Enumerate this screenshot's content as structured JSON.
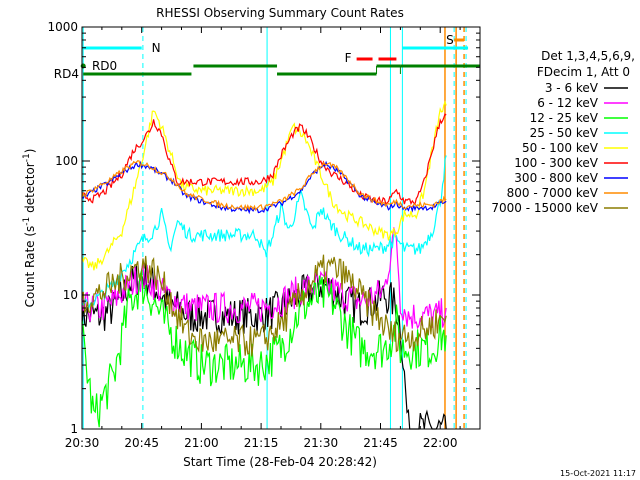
{
  "chart_data": {
    "type": "line",
    "title": "RHESSI Observing Summary Count Rates",
    "xlabel": "Start Time (28-Feb-04 20:28:42)",
    "ylabel_main": "Count Rate (s",
    "ylabel_sup1": "-1",
    "ylabel_mid": " detector",
    "ylabel_sup2": "-1",
    "ylabel_end": ")",
    "y_scale": "log",
    "ylim": [
      1,
      1000
    ],
    "xlim_minutes": [
      0,
      100
    ],
    "x_ticks": [
      {
        "m": 0,
        "label": "20:30"
      },
      {
        "m": 15,
        "label": "20:45"
      },
      {
        "m": 30,
        "label": "21:00"
      },
      {
        "m": 45,
        "label": "21:15"
      },
      {
        "m": 60,
        "label": "21:30"
      },
      {
        "m": 75,
        "label": "21:45"
      },
      {
        "m": 90,
        "label": "22:00"
      }
    ],
    "y_ticks": [
      {
        "v": 1,
        "label": "1"
      },
      {
        "v": 10,
        "label": "10"
      },
      {
        "v": 100,
        "label": "100"
      },
      {
        "v": 1000,
        "label": "1000"
      }
    ],
    "legend_header": [
      "Det 1,3,4,5,6,9,",
      "FDecim 1, Att 0"
    ],
    "series": [
      {
        "name": "3 - 6 keV",
        "color": "#000000",
        "points": [
          [
            0,
            7
          ],
          [
            5,
            7
          ],
          [
            8,
            8
          ],
          [
            12,
            12
          ],
          [
            15,
            14
          ],
          [
            18,
            12
          ],
          [
            21,
            9
          ],
          [
            24,
            8
          ],
          [
            27,
            7
          ],
          [
            30,
            7
          ],
          [
            35,
            7
          ],
          [
            40,
            7
          ],
          [
            45,
            7
          ],
          [
            50,
            8
          ],
          [
            55,
            10
          ],
          [
            60,
            12
          ],
          [
            63,
            11
          ],
          [
            66,
            9
          ],
          [
            70,
            8
          ],
          [
            74,
            9
          ],
          [
            76,
            10
          ],
          [
            78,
            9
          ],
          [
            79,
            8
          ],
          [
            80,
            6
          ],
          [
            82,
            1
          ],
          [
            84,
            1
          ],
          [
            86,
            1
          ],
          [
            88,
            1
          ],
          [
            90,
            1
          ],
          [
            91.5,
            1
          ]
        ]
      },
      {
        "name": "6 - 12 keV",
        "color": "#ff00ff",
        "points": [
          [
            0,
            8
          ],
          [
            5,
            8
          ],
          [
            8,
            9
          ],
          [
            12,
            12
          ],
          [
            15,
            14
          ],
          [
            18,
            12
          ],
          [
            21,
            10
          ],
          [
            24,
            9
          ],
          [
            27,
            8
          ],
          [
            30,
            8
          ],
          [
            35,
            8
          ],
          [
            40,
            8
          ],
          [
            45,
            8
          ],
          [
            50,
            9
          ],
          [
            55,
            11
          ],
          [
            60,
            12
          ],
          [
            63,
            11
          ],
          [
            66,
            10
          ],
          [
            70,
            9
          ],
          [
            74,
            10
          ],
          [
            76,
            11
          ],
          [
            78,
            25
          ],
          [
            79,
            28
          ],
          [
            80,
            9
          ],
          [
            82,
            7
          ],
          [
            86,
            7
          ],
          [
            90,
            7
          ],
          [
            91.5,
            8
          ]
        ]
      },
      {
        "name": "12 - 25 keV",
        "color": "#00ff00",
        "points": [
          [
            0,
            5
          ],
          [
            3,
            1.2
          ],
          [
            8,
            2.5
          ],
          [
            12,
            9
          ],
          [
            15,
            12
          ],
          [
            18,
            9
          ],
          [
            21,
            6
          ],
          [
            25,
            4
          ],
          [
            30,
            3
          ],
          [
            35,
            3
          ],
          [
            40,
            3
          ],
          [
            45,
            3
          ],
          [
            50,
            4
          ],
          [
            55,
            8
          ],
          [
            60,
            10
          ],
          [
            63,
            9
          ],
          [
            66,
            6
          ],
          [
            70,
            4
          ],
          [
            74,
            4
          ],
          [
            76,
            4
          ],
          [
            78,
            5
          ],
          [
            79,
            6
          ],
          [
            80,
            4
          ],
          [
            84,
            4
          ],
          [
            88,
            4
          ],
          [
            90,
            5
          ],
          [
            91.5,
            5
          ]
        ]
      },
      {
        "name": "25 - 50 keV",
        "color": "#00ffff",
        "points": [
          [
            0,
            8
          ],
          [
            5,
            10
          ],
          [
            8,
            12
          ],
          [
            12,
            18
          ],
          [
            15,
            25
          ],
          [
            18,
            30
          ],
          [
            20,
            40
          ],
          [
            22,
            22
          ],
          [
            24,
            35
          ],
          [
            27,
            28
          ],
          [
            30,
            28
          ],
          [
            35,
            28
          ],
          [
            40,
            28
          ],
          [
            44,
            28
          ],
          [
            46,
            20
          ],
          [
            48,
            28
          ],
          [
            50,
            45
          ],
          [
            52,
            30
          ],
          [
            55,
            55
          ],
          [
            58,
            30
          ],
          [
            60,
            45
          ],
          [
            62,
            35
          ],
          [
            65,
            28
          ],
          [
            70,
            22
          ],
          [
            74,
            22
          ],
          [
            76,
            23
          ],
          [
            77,
            24
          ],
          [
            79,
            26
          ],
          [
            81,
            22
          ],
          [
            85,
            22
          ],
          [
            88,
            30
          ],
          [
            90,
            50
          ],
          [
            91.5,
            110
          ]
        ]
      },
      {
        "name": "50 - 100 keV",
        "color": "#ffff00",
        "points": [
          [
            0,
            18
          ],
          [
            3,
            16
          ],
          [
            6,
            20
          ],
          [
            10,
            30
          ],
          [
            13,
            60
          ],
          [
            15,
            100
          ],
          [
            17,
            180
          ],
          [
            18,
            240
          ],
          [
            20,
            180
          ],
          [
            22,
            120
          ],
          [
            25,
            65
          ],
          [
            30,
            60
          ],
          [
            35,
            60
          ],
          [
            40,
            60
          ],
          [
            45,
            60
          ],
          [
            48,
            70
          ],
          [
            50,
            100
          ],
          [
            53,
            180
          ],
          [
            56,
            150
          ],
          [
            60,
            80
          ],
          [
            63,
            50
          ],
          [
            66,
            40
          ],
          [
            70,
            35
          ],
          [
            74,
            30
          ],
          [
            77,
            28
          ],
          [
            79,
            30
          ],
          [
            81,
            40
          ],
          [
            84,
            40
          ],
          [
            86,
            60
          ],
          [
            88,
            120
          ],
          [
            90,
            230
          ],
          [
            91.5,
            260
          ]
        ]
      },
      {
        "name": "100 - 300 keV",
        "color": "#ff0000",
        "points": [
          [
            0,
            55
          ],
          [
            3,
            52
          ],
          [
            6,
            60
          ],
          [
            10,
            80
          ],
          [
            13,
            120
          ],
          [
            15,
            140
          ],
          [
            17,
            170
          ],
          [
            18,
            200
          ],
          [
            20,
            160
          ],
          [
            22,
            100
          ],
          [
            24,
            70
          ],
          [
            27,
            70
          ],
          [
            30,
            70
          ],
          [
            35,
            70
          ],
          [
            40,
            70
          ],
          [
            45,
            70
          ],
          [
            48,
            80
          ],
          [
            50,
            110
          ],
          [
            53,
            160
          ],
          [
            55,
            180
          ],
          [
            57,
            150
          ],
          [
            60,
            100
          ],
          [
            63,
            80
          ],
          [
            66,
            70
          ],
          [
            70,
            55
          ],
          [
            74,
            50
          ],
          [
            77,
            50
          ],
          [
            79,
            60
          ],
          [
            81,
            50
          ],
          [
            84,
            50
          ],
          [
            86,
            70
          ],
          [
            88,
            120
          ],
          [
            90,
            200
          ],
          [
            91.5,
            220
          ]
        ]
      },
      {
        "name": "300 - 800 keV",
        "color": "#0000ff",
        "points": [
          [
            0,
            52
          ],
          [
            3,
            60
          ],
          [
            7,
            70
          ],
          [
            11,
            85
          ],
          [
            14,
            95
          ],
          [
            17,
            90
          ],
          [
            20,
            80
          ],
          [
            23,
            70
          ],
          [
            26,
            55
          ],
          [
            30,
            50
          ],
          [
            35,
            45
          ],
          [
            40,
            43
          ],
          [
            45,
            43
          ],
          [
            50,
            48
          ],
          [
            55,
            60
          ],
          [
            58,
            80
          ],
          [
            61,
            95
          ],
          [
            64,
            85
          ],
          [
            67,
            70
          ],
          [
            70,
            55
          ],
          [
            74,
            48
          ],
          [
            77,
            45
          ],
          [
            79,
            48
          ],
          [
            81,
            44
          ],
          [
            85,
            45
          ],
          [
            88,
            45
          ],
          [
            90,
            48
          ],
          [
            91.5,
            50
          ]
        ]
      },
      {
        "name": "800 - 7000 keV",
        "color": "#ff8c00",
        "points": [
          [
            0,
            55
          ],
          [
            3,
            62
          ],
          [
            7,
            72
          ],
          [
            11,
            88
          ],
          [
            14,
            98
          ],
          [
            17,
            92
          ],
          [
            20,
            82
          ],
          [
            23,
            72
          ],
          [
            26,
            57
          ],
          [
            30,
            52
          ],
          [
            35,
            47
          ],
          [
            40,
            45
          ],
          [
            45,
            45
          ],
          [
            50,
            50
          ],
          [
            55,
            62
          ],
          [
            58,
            82
          ],
          [
            61,
            97
          ],
          [
            64,
            88
          ],
          [
            67,
            72
          ],
          [
            70,
            57
          ],
          [
            74,
            50
          ],
          [
            77,
            47
          ],
          [
            79,
            50
          ],
          [
            81,
            46
          ],
          [
            85,
            47
          ],
          [
            88,
            47
          ],
          [
            90,
            50
          ],
          [
            91.5,
            52
          ]
        ]
      },
      {
        "name": "7000 - 15000 keV",
        "color": "#8b7d00",
        "points": [
          [
            0,
            9
          ],
          [
            4,
            10
          ],
          [
            8,
            12
          ],
          [
            12,
            15
          ],
          [
            15,
            17
          ],
          [
            18,
            15
          ],
          [
            21,
            11
          ],
          [
            24,
            7
          ],
          [
            27,
            5
          ],
          [
            30,
            4.5
          ],
          [
            35,
            4.5
          ],
          [
            40,
            4.5
          ],
          [
            45,
            4.5
          ],
          [
            50,
            6
          ],
          [
            55,
            10
          ],
          [
            60,
            15
          ],
          [
            63,
            16
          ],
          [
            66,
            14
          ],
          [
            70,
            10
          ],
          [
            74,
            7
          ],
          [
            78,
            5
          ],
          [
            80,
            5
          ],
          [
            84,
            5
          ],
          [
            88,
            6
          ],
          [
            91.5,
            7
          ]
        ]
      }
    ],
    "annotations": {
      "rd0_label": "RD0",
      "rd4_label": "RD4",
      "n_label": "N",
      "f_label": "F",
      "s_label": "S"
    },
    "bar_colors": {
      "cyan": "#00ffff",
      "green": "#008000",
      "red": "#ff0000",
      "orange": "#ff8c00"
    },
    "timestamp": "15-Oct-2021 11:17"
  }
}
